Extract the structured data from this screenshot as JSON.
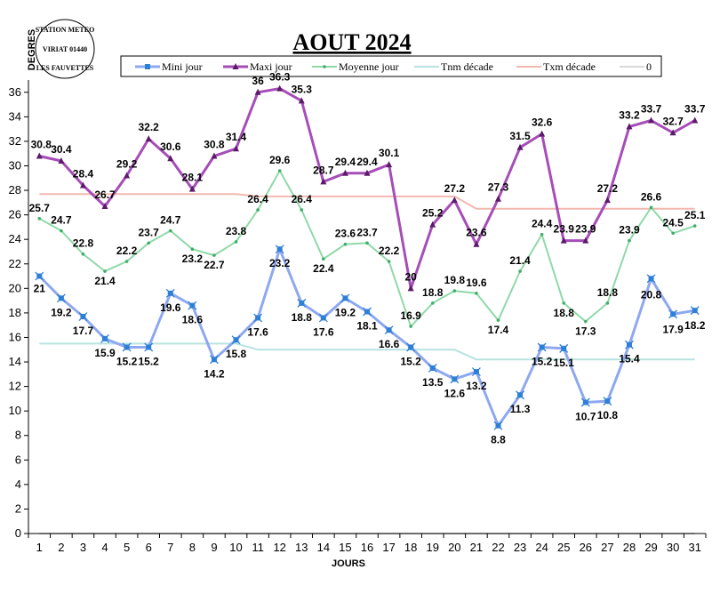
{
  "chart_data": {
    "type": "line",
    "title": "AOUT 2024",
    "xlabel": "JOURS",
    "ylabel": "DEGRES",
    "stamp": [
      "STATION METEO",
      "VIRIAT 01440",
      "LES FAUVETTES"
    ],
    "x": [
      1,
      2,
      3,
      4,
      5,
      6,
      7,
      8,
      9,
      10,
      11,
      12,
      13,
      14,
      15,
      16,
      17,
      18,
      19,
      20,
      21,
      22,
      23,
      24,
      25,
      26,
      27,
      28,
      29,
      30,
      31
    ],
    "ylim": [
      0,
      37
    ],
    "yticks": [
      0,
      2,
      4,
      6,
      8,
      10,
      12,
      14,
      16,
      18,
      20,
      22,
      24,
      26,
      28,
      30,
      32,
      34,
      36
    ],
    "grid": false,
    "legend_position": "top",
    "series": [
      {
        "name": "Mini jour",
        "color": "#8ea8f0",
        "marker": "star",
        "labels": true,
        "values": [
          21,
          19.2,
          17.7,
          15.9,
          15.2,
          15.2,
          19.6,
          18.6,
          14.2,
          15.8,
          17.6,
          23.2,
          18.8,
          17.6,
          19.2,
          18.1,
          16.6,
          15.2,
          13.5,
          12.6,
          13.2,
          8.8,
          11.3,
          15.2,
          15.1,
          10.7,
          10.8,
          15.4,
          20.8,
          17.9,
          18.2
        ]
      },
      {
        "name": "Maxi jour",
        "color": "#a64db8",
        "marker": "triangle",
        "labels": true,
        "values": [
          30.8,
          30.4,
          28.4,
          26.7,
          29.2,
          32.2,
          30.6,
          28.1,
          30.8,
          31.4,
          36,
          36.3,
          35.3,
          28.7,
          29.4,
          29.4,
          30.1,
          20,
          25.2,
          27.2,
          23.6,
          27.3,
          31.5,
          32.6,
          23.9,
          23.9,
          27.2,
          33.2,
          33.7,
          32.7,
          33.7
        ]
      },
      {
        "name": "Moyenne jour",
        "color": "#8fd9a8",
        "marker": "dot",
        "labels": true,
        "values": [
          25.7,
          24.7,
          22.8,
          21.4,
          22.2,
          23.7,
          24.7,
          23.2,
          22.7,
          23.8,
          26.4,
          29.6,
          26.4,
          22.4,
          23.6,
          23.7,
          22.2,
          16.9,
          18.8,
          19.8,
          19.6,
          17.4,
          21.4,
          24.4,
          18.8,
          17.3,
          18.8,
          23.9,
          26.6,
          24.5,
          25.1
        ]
      },
      {
        "name": "Tnm décade",
        "color": "#b7e3e0",
        "marker": "none",
        "labels": false,
        "values": [
          15.5,
          15.5,
          15.5,
          15.5,
          15.5,
          15.5,
          15.5,
          15.5,
          15.5,
          15.5,
          15,
          15,
          15,
          15,
          15,
          15,
          15,
          15,
          15,
          15,
          14.2,
          14.2,
          14.2,
          14.2,
          14.2,
          14.2,
          14.2,
          14.2,
          14.2,
          14.2,
          14.2
        ]
      },
      {
        "name": "Txm décade",
        "color": "#f2b8b0",
        "marker": "none",
        "labels": false,
        "values": [
          27.7,
          27.7,
          27.7,
          27.7,
          27.7,
          27.7,
          27.7,
          27.7,
          27.7,
          27.7,
          27.5,
          27.5,
          27.5,
          27.5,
          27.5,
          27.5,
          27.5,
          27.5,
          27.5,
          27.5,
          26.5,
          26.5,
          26.5,
          26.5,
          26.5,
          26.5,
          26.5,
          26.5,
          26.5,
          26.5,
          26.5
        ]
      },
      {
        "name": "0",
        "color": "#d9d9d9",
        "marker": "none",
        "labels": false,
        "values": [
          0,
          0,
          0,
          0,
          0,
          0,
          0,
          0,
          0,
          0,
          0,
          0,
          0,
          0,
          0,
          0,
          0,
          0,
          0,
          0,
          0,
          0,
          0,
          0,
          0,
          0,
          0,
          0,
          0,
          0,
          0
        ]
      }
    ]
  }
}
